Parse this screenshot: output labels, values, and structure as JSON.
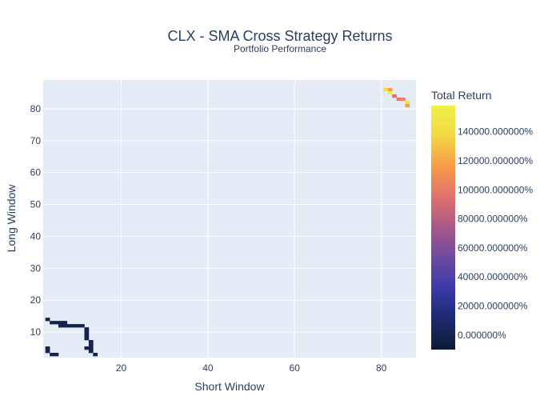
{
  "chart_data": {
    "type": "heatmap",
    "title": "CLX - SMA Cross Strategy Returns",
    "subtitle": "Portfolio Performance",
    "xlabel": "Short Window",
    "ylabel": "Long Window",
    "xlim": [
      2,
      88
    ],
    "ylim": [
      2,
      89
    ],
    "x_ticks": [
      20,
      40,
      60,
      80
    ],
    "y_ticks": [
      10,
      20,
      30,
      40,
      50,
      60,
      70,
      80
    ],
    "grid": true,
    "colorbar": {
      "title": "Total Return",
      "range": [
        -10000,
        158000
      ],
      "ticks": [
        {
          "value": 0,
          "label": "0.000000%"
        },
        {
          "value": 20000,
          "label": "20000.000000%"
        },
        {
          "value": 40000,
          "label": "40000.000000%"
        },
        {
          "value": 60000,
          "label": "60000.000000%"
        },
        {
          "value": 80000,
          "label": "80000.000000%"
        },
        {
          "value": 100000,
          "label": "100000.000000%"
        },
        {
          "value": 120000,
          "label": "120000.000000%"
        },
        {
          "value": 140000,
          "label": "140000.000000%"
        }
      ],
      "colors": [
        "#0d1a33",
        "#1b2a70",
        "#3a3aa8",
        "#6b4aa0",
        "#a8588a",
        "#e0706e",
        "#f79a48",
        "#f2d745",
        "#f0f146"
      ]
    },
    "cells": [
      {
        "x": 3,
        "y": 14,
        "v": 0
      },
      {
        "x": 4,
        "y": 13,
        "v": 0
      },
      {
        "x": 5,
        "y": 13,
        "v": 0
      },
      {
        "x": 6,
        "y": 13,
        "v": 0
      },
      {
        "x": 7,
        "y": 13,
        "v": 0
      },
      {
        "x": 6,
        "y": 12,
        "v": 0
      },
      {
        "x": 7,
        "y": 12,
        "v": 0
      },
      {
        "x": 8,
        "y": 12,
        "v": 0
      },
      {
        "x": 9,
        "y": 12,
        "v": 0
      },
      {
        "x": 10,
        "y": 12,
        "v": 0
      },
      {
        "x": 11,
        "y": 12,
        "v": 0
      },
      {
        "x": 12,
        "y": 11,
        "v": 0
      },
      {
        "x": 12,
        "y": 10,
        "v": 0
      },
      {
        "x": 12,
        "y": 9,
        "v": 0
      },
      {
        "x": 12,
        "y": 8,
        "v": 0
      },
      {
        "x": 13,
        "y": 7,
        "v": 0
      },
      {
        "x": 13,
        "y": 6,
        "v": 0
      },
      {
        "x": 12,
        "y": 5,
        "v": 0
      },
      {
        "x": 13,
        "y": 5,
        "v": 0
      },
      {
        "x": 13,
        "y": 4,
        "v": 0
      },
      {
        "x": 14,
        "y": 3,
        "v": 0
      },
      {
        "x": 3,
        "y": 5,
        "v": 0
      },
      {
        "x": 3,
        "y": 4,
        "v": 0
      },
      {
        "x": 4,
        "y": 3,
        "v": 0
      },
      {
        "x": 5,
        "y": 3,
        "v": 0
      },
      {
        "x": 81,
        "y": 86,
        "v": 140000
      },
      {
        "x": 82,
        "y": 86,
        "v": 118000
      },
      {
        "x": 82,
        "y": 85,
        "v": 155000
      },
      {
        "x": 83,
        "y": 84,
        "v": 95000
      },
      {
        "x": 84,
        "y": 83,
        "v": 100000
      },
      {
        "x": 85,
        "y": 83,
        "v": 105000
      },
      {
        "x": 86,
        "y": 82,
        "v": 148000
      },
      {
        "x": 86,
        "y": 81,
        "v": 118000
      }
    ]
  }
}
